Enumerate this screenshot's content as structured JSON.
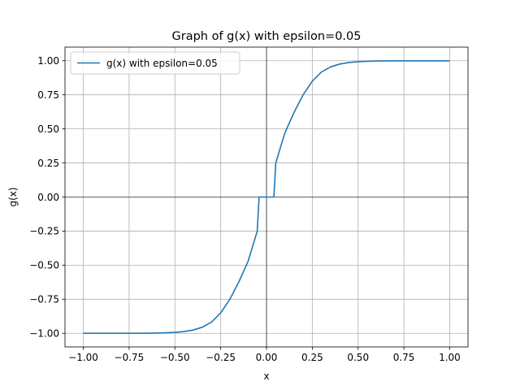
{
  "chart_data": {
    "type": "line",
    "title": "Graph of g(x) with epsilon=0.05",
    "xlabel": "x",
    "ylabel": "g(x)",
    "xlim": [
      -1.1,
      1.1
    ],
    "ylim": [
      -1.1,
      1.1
    ],
    "x_ticks": [
      -1.0,
      -0.75,
      -0.5,
      -0.25,
      0.0,
      0.25,
      0.5,
      0.75,
      1.0
    ],
    "x_tick_labels": [
      "−1.00",
      "−0.75",
      "−0.50",
      "−0.25",
      "0.00",
      "0.25",
      "0.50",
      "0.75",
      "1.00"
    ],
    "y_ticks": [
      -1.0,
      -0.75,
      -0.5,
      -0.25,
      0.0,
      0.25,
      0.5,
      0.75,
      1.0
    ],
    "y_tick_labels": [
      "−1.00",
      "−0.75",
      "−0.50",
      "−0.25",
      "0.00",
      "0.25",
      "0.50",
      "0.75",
      "1.00"
    ],
    "grid": true,
    "zero_lines": true,
    "legend_position": "top-left",
    "series": [
      {
        "name": "g(x) with epsilon=0.05",
        "color": "#1f77b4",
        "points": [
          [
            -1.0,
            -1.0
          ],
          [
            -0.95,
            -1.0
          ],
          [
            -0.9,
            -1.0
          ],
          [
            -0.85,
            -0.9999
          ],
          [
            -0.8,
            -0.9998
          ],
          [
            -0.75,
            -0.9997
          ],
          [
            -0.7,
            -0.9995
          ],
          [
            -0.65,
            -0.999
          ],
          [
            -0.6,
            -0.998
          ],
          [
            -0.55,
            -0.996
          ],
          [
            -0.5,
            -0.993
          ],
          [
            -0.45,
            -0.987
          ],
          [
            -0.4,
            -0.976
          ],
          [
            -0.35,
            -0.955
          ],
          [
            -0.3,
            -0.918
          ],
          [
            -0.25,
            -0.85
          ],
          [
            -0.2,
            -0.75
          ],
          [
            -0.15,
            -0.62
          ],
          [
            -0.1,
            -0.47
          ],
          [
            -0.0505,
            -0.25
          ],
          [
            -0.0404,
            0.0
          ],
          [
            0.0404,
            0.0
          ],
          [
            0.0505,
            0.25
          ],
          [
            0.1,
            0.47
          ],
          [
            0.15,
            0.62
          ],
          [
            0.2,
            0.75
          ],
          [
            0.25,
            0.85
          ],
          [
            0.3,
            0.918
          ],
          [
            0.35,
            0.955
          ],
          [
            0.4,
            0.976
          ],
          [
            0.45,
            0.987
          ],
          [
            0.5,
            0.993
          ],
          [
            0.55,
            0.996
          ],
          [
            0.6,
            0.998
          ],
          [
            0.65,
            0.999
          ],
          [
            0.7,
            0.9995
          ],
          [
            0.75,
            0.9997
          ],
          [
            0.8,
            0.9998
          ],
          [
            0.85,
            0.9999
          ],
          [
            0.9,
            1.0
          ],
          [
            0.95,
            1.0
          ],
          [
            1.0,
            1.0
          ]
        ]
      }
    ]
  }
}
